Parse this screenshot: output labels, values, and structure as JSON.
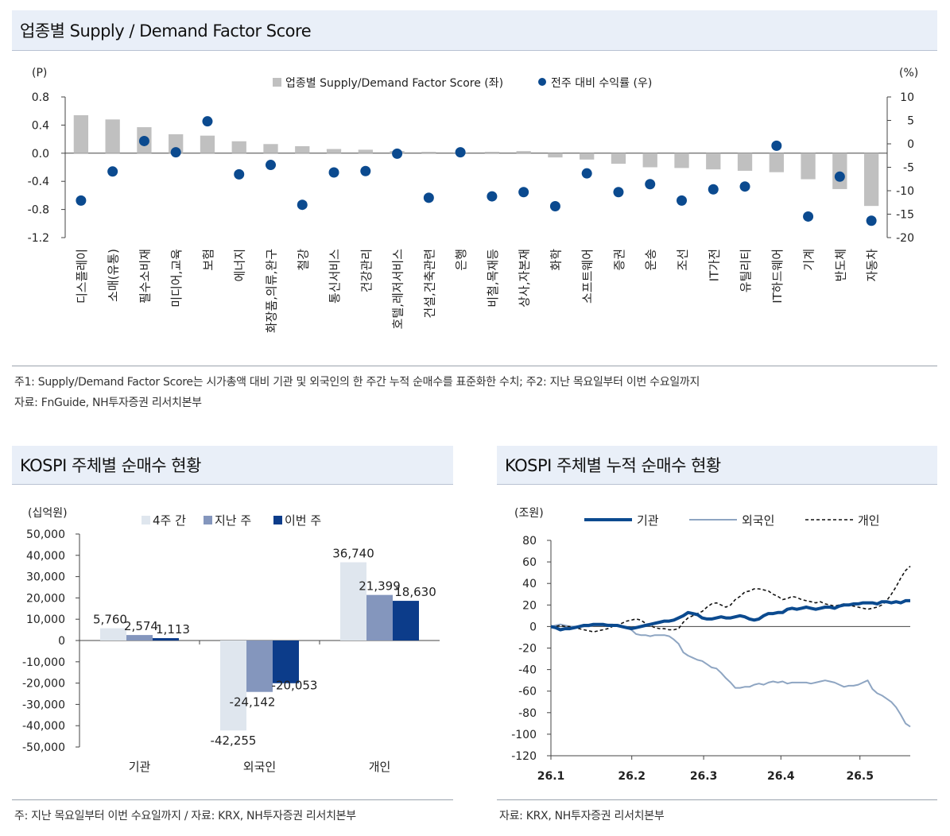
{
  "sections": {
    "top": {
      "title": "업종별 Supply / Demand Factor Score",
      "note1": "주1: Supply/Demand Factor Score는 시가총액 대비 기관 및 외국인의 한 주간 누적 순매수를 표준화한 수치; 주2: 지난 목요일부터 이번 수요일까지",
      "note2": "자료: FnGuide, NH투자증권 리서치본부"
    },
    "left": {
      "title": "KOSPI 주체별 순매수 현황",
      "note": "주: 지난 목요일부터 이번 수요일까지 / 자료: KRX, NH투자증권 리서치본부"
    },
    "right": {
      "title": "KOSPI 주체별 누적 순매수 현황",
      "note": "자료: KRX, NH투자증권 리서치본부"
    }
  },
  "chart_data": [
    {
      "type": "bar",
      "title": "업종별 Supply / Demand Factor Score",
      "ylabel_left": "(P)",
      "ylabel_right": "(%)",
      "ylim_left": [
        -1.2,
        0.8
      ],
      "yticks_left": [
        "0.8",
        "0.4",
        "0.0",
        "-0.4",
        "-0.8",
        "-1.2"
      ],
      "ylim_right": [
        -20,
        10
      ],
      "yticks_right": [
        "10",
        "5",
        "0",
        "-5",
        "-10",
        "-15",
        "-20"
      ],
      "legend_position": "top-center",
      "categories": [
        "디스플레이",
        "소매(유통)",
        "필수소비재",
        "미디어,교육",
        "보험",
        "에너지",
        "화장품,의류,완구",
        "철강",
        "통신서비스",
        "건강관리",
        "호텔,레저서비스",
        "건설,건축관련",
        "은행",
        "비철,목재등",
        "상사,자본재",
        "화학",
        "소프트웨어",
        "증권",
        "운송",
        "조선",
        "IT가전",
        "유틸리티",
        "IT하드웨어",
        "기계",
        "반도체",
        "자동차"
      ],
      "series": [
        {
          "name": "업종별 Supply/Demand Factor Score (좌)",
          "kind": "bar",
          "axis": "left",
          "color": "#c0c0c0",
          "values": [
            0.54,
            0.48,
            0.37,
            0.27,
            0.25,
            0.17,
            0.13,
            0.1,
            0.06,
            0.05,
            0.03,
            0.02,
            0.0,
            0.02,
            0.03,
            -0.06,
            -0.09,
            -0.15,
            -0.2,
            -0.21,
            -0.23,
            -0.25,
            -0.27,
            -0.37,
            -0.51,
            -0.75
          ]
        },
        {
          "name": "전주 대비 수익률 (우)",
          "kind": "dot",
          "axis": "right",
          "color": "#0b4a8f",
          "values": [
            -12.1,
            -5.9,
            0.6,
            -1.8,
            4.8,
            -6.5,
            -4.5,
            -13.0,
            -6.1,
            -5.8,
            -2.1,
            -11.5,
            -1.8,
            -11.2,
            -10.3,
            -13.3,
            -6.3,
            -10.3,
            -8.6,
            -12.1,
            -9.7,
            -9.1,
            -0.4,
            -15.5,
            -7.0,
            -16.4
          ]
        }
      ]
    },
    {
      "type": "bar",
      "title": "KOSPI 주체별 순매수 현황",
      "ylabel": "(십억원)",
      "ylim": [
        -50000,
        50000
      ],
      "yticks": [
        "50,000",
        "40,000",
        "30,000",
        "20,000",
        "10,000",
        "0",
        "-10,000",
        "-20,000",
        "-30,000",
        "-40,000",
        "-50,000"
      ],
      "categories": [
        "기관",
        "외국인",
        "개인"
      ],
      "legend_position": "top-center",
      "series": [
        {
          "name": "4주 간",
          "color": "#dfe6ee",
          "values": [
            5760,
            -42255,
            36740
          ],
          "labels": [
            "5,760",
            "-42,255",
            "36,740"
          ]
        },
        {
          "name": "지난 주",
          "color": "#8496bd",
          "values": [
            2574,
            -24142,
            21399
          ],
          "labels": [
            "2,574",
            "-24,142",
            "21,399"
          ]
        },
        {
          "name": "이번 주",
          "color": "#0c3c8a",
          "values": [
            1113,
            -20053,
            18630
          ],
          "labels": [
            "1,113",
            "-20,053",
            "18,630"
          ]
        }
      ]
    },
    {
      "type": "line",
      "title": "KOSPI 주체별 누적 순매수 현황",
      "ylabel": "(조원)",
      "ylim": [
        -120,
        80
      ],
      "yticks": [
        "80",
        "60",
        "40",
        "20",
        "0",
        "-20",
        "-40",
        "-60",
        "-80",
        "-100",
        "-120"
      ],
      "x_tick_labels": [
        "26.1",
        "26.2",
        "26.3",
        "26.4",
        "26.5"
      ],
      "legend_position": "top",
      "series": [
        {
          "name": "기관",
          "color": "#0b4a8f",
          "style": "solid-thick",
          "values": [
            0,
            -1,
            -3,
            -2,
            -2,
            -1,
            0,
            1,
            1,
            2,
            2,
            2,
            1,
            1,
            1,
            0,
            -1,
            -2,
            -1,
            0,
            1,
            2,
            3,
            4,
            5,
            5,
            6,
            8,
            10,
            13,
            12,
            11,
            8,
            7,
            7,
            8,
            9,
            8,
            8,
            9,
            10,
            9,
            7,
            6,
            7,
            10,
            12,
            12,
            13,
            13,
            16,
            17,
            16,
            17,
            18,
            17,
            16,
            17,
            18,
            18,
            17,
            19,
            20,
            20,
            21,
            21,
            22,
            22,
            22,
            21,
            23,
            23,
            22,
            23,
            22,
            24,
            24
          ]
        },
        {
          "name": "외국인",
          "color": "#8ea5c2",
          "style": "solid-thin",
          "values": [
            0,
            1,
            2,
            1,
            0,
            0,
            0,
            0,
            0,
            1,
            1,
            1,
            2,
            2,
            1,
            0,
            -1,
            -3,
            -7,
            -8,
            -8,
            -9,
            -8,
            -8,
            -8,
            -9,
            -12,
            -16,
            -24,
            -27,
            -29,
            -31,
            -32,
            -35,
            -38,
            -39,
            -43,
            -48,
            -52,
            -57,
            -57,
            -56,
            -56,
            -54,
            -53,
            -54,
            -52,
            -51,
            -52,
            -51,
            -53,
            -52,
            -52,
            -52,
            -52,
            -53,
            -52,
            -51,
            -50,
            -51,
            -52,
            -54,
            -56,
            -55,
            -55,
            -54,
            -52,
            -50,
            -58,
            -62,
            -64,
            -67,
            -70,
            -75,
            -82,
            -90,
            -93
          ]
        },
        {
          "name": "개인",
          "color": "#111111",
          "style": "dashed",
          "values": [
            0,
            0,
            1,
            0,
            0,
            -1,
            -2,
            -3,
            -4,
            -5,
            -4,
            -3,
            -2,
            0,
            1,
            3,
            5,
            6,
            7,
            6,
            3,
            1,
            -1,
            -2,
            -2,
            -3,
            -3,
            -2,
            4,
            8,
            10,
            12,
            14,
            18,
            21,
            22,
            20,
            18,
            20,
            25,
            28,
            32,
            33,
            35,
            35,
            34,
            33,
            30,
            28,
            25,
            26,
            28,
            27,
            25,
            24,
            23,
            22,
            23,
            21,
            20,
            19,
            20,
            21,
            20,
            19,
            18,
            17,
            16,
            17,
            18,
            20,
            24,
            30,
            37,
            45,
            52,
            56
          ]
        }
      ]
    }
  ]
}
